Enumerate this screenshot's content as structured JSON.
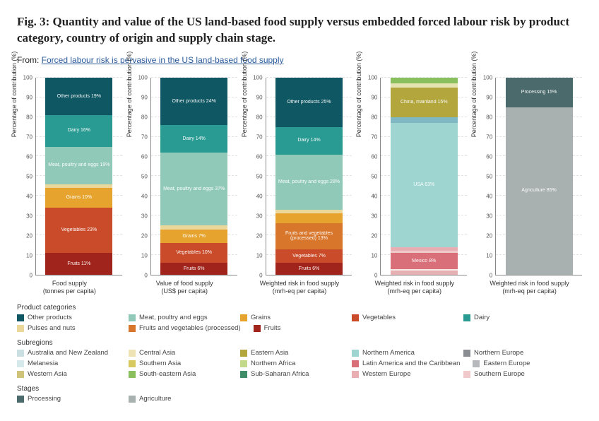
{
  "title": "Fig. 3: Quantity and value of the US land-based food supply versus embedded forced labour risk by product category, country of origin and supply chain stage.",
  "from_prefix": "From: ",
  "from_link": "Forced labour risk is pervasive in the US land-based food supply",
  "y_label": "Percentage of contribution (%)",
  "y_ticks": [
    0,
    10,
    20,
    30,
    40,
    50,
    60,
    70,
    80,
    90,
    100
  ],
  "charts": [
    {
      "caption_l1": "Food supply",
      "caption_l2": "(tonnes per capita)",
      "segments": [
        {
          "label": "Fruits",
          "pct": 11,
          "color": "#a0241b"
        },
        {
          "label": "Vegetables",
          "pct": 23,
          "color": "#c94b2a"
        },
        {
          "label": "Fruits and vegetables (processed)",
          "pct": 0,
          "color": "#d8772c",
          "hide": true
        },
        {
          "label": "Grains",
          "pct": 10,
          "color": "#e6a42e"
        },
        {
          "label": "Pulses and nuts",
          "pct": 2,
          "color": "#ecd79a",
          "hide": true
        },
        {
          "label": "Meat, poultry and eggs",
          "pct": 19,
          "color": "#91c9b9"
        },
        {
          "label": "Dairy",
          "pct": 16,
          "color": "#2a9b93"
        },
        {
          "label": "Other products",
          "pct": 19,
          "color": "#0e5763"
        }
      ]
    },
    {
      "caption_l1": "Value of food supply",
      "caption_l2": "(US$ per capita)",
      "segments": [
        {
          "label": "Fruits",
          "pct": 6,
          "color": "#a0241b"
        },
        {
          "label": "Vegetables",
          "pct": 10,
          "color": "#c94b2a"
        },
        {
          "label": "Fruits and vegetables (processed)",
          "pct": 0,
          "color": "#d8772c",
          "hide": true
        },
        {
          "label": "Grains",
          "pct": 7,
          "color": "#e6a42e"
        },
        {
          "label": "Pulses and nuts",
          "pct": 2,
          "color": "#ecd79a",
          "hide": true
        },
        {
          "label": "Meat, poultry and eggs",
          "pct": 37,
          "color": "#91c9b9"
        },
        {
          "label": "Dairy",
          "pct": 14,
          "color": "#2a9b93"
        },
        {
          "label": "Other products",
          "pct": 24,
          "color": "#0e5763"
        }
      ]
    },
    {
      "caption_l1": "Weighted risk in food supply",
      "caption_l2": "(mrh-eq per capita)",
      "segments": [
        {
          "label": "Fruits",
          "pct": 6,
          "color": "#a0241b"
        },
        {
          "label": "Vegetables",
          "pct": 7,
          "color": "#c94b2a"
        },
        {
          "label": "Fruits and vegetables (processed)",
          "pct": 13,
          "color": "#d8772c"
        },
        {
          "label": "Grains",
          "pct": 5,
          "color": "#e6a42e"
        },
        {
          "label": "Pulses and nuts",
          "pct": 2,
          "color": "#ecd79a",
          "hide": true
        },
        {
          "label": "Meat, poultry and eggs",
          "pct": 28,
          "color": "#91c9b9"
        },
        {
          "label": "Dairy",
          "pct": 14,
          "color": "#2a9b93"
        },
        {
          "label": "Other products",
          "pct": 25,
          "color": "#0e5763"
        }
      ]
    },
    {
      "caption_l1": "Weighted risk in food supply",
      "caption_l2": "(mrh-eq per capita)",
      "segments": [
        {
          "label": "",
          "pct": 2,
          "color": "#e7b1b4",
          "hide": true
        },
        {
          "label": "",
          "pct": 1,
          "color": "#f8e9e9",
          "hide": true
        },
        {
          "label": "Mexico",
          "pct": 8,
          "color": "#d96f78"
        },
        {
          "label": "",
          "pct": 1,
          "color": "#f2c9ca",
          "hide": true
        },
        {
          "label": "",
          "pct": 2,
          "color": "#e9aeb2",
          "hide": true
        },
        {
          "label": "USA",
          "pct": 63,
          "color": "#9ed5d0"
        },
        {
          "label": "",
          "pct": 3,
          "color": "#7fb7c3",
          "hide": true
        },
        {
          "label": "China, mainland",
          "pct": 15,
          "color": "#b2a63c"
        },
        {
          "label": "",
          "pct": 2,
          "color": "#e6e3b2",
          "hide": true
        },
        {
          "label": "",
          "pct": 3,
          "color": "#8abf5d",
          "hide": true
        }
      ]
    },
    {
      "caption_l1": "Weighted risk in food supply",
      "caption_l2": "(mrh-eq per capita)",
      "segments": [
        {
          "label": "Agriculture",
          "pct": 85,
          "color": "#a9b0b0"
        },
        {
          "label": "Processing",
          "pct": 15,
          "color": "#4b6a6c"
        }
      ]
    }
  ],
  "legends": {
    "product": {
      "heading": "Product categories",
      "items": [
        {
          "label": "Other products",
          "color": "#0e5763"
        },
        {
          "label": "Meat, poultry and eggs",
          "color": "#91c9b9"
        },
        {
          "label": "Grains",
          "color": "#e6a42e"
        },
        {
          "label": "Vegetables",
          "color": "#c94b2a"
        },
        {
          "label": "Dairy",
          "color": "#2a9b93"
        },
        {
          "label": "Pulses and nuts",
          "color": "#ecd79a"
        },
        {
          "label": "Fruits and vegetables (processed)",
          "color": "#d8772c"
        },
        {
          "label": "Fruits",
          "color": "#a0241b"
        }
      ]
    },
    "subregions": {
      "heading": "Subregions",
      "items": [
        {
          "label": "Australia and New Zealand",
          "color": "#c9dfe2"
        },
        {
          "label": "Central Asia",
          "color": "#ede3b4"
        },
        {
          "label": "Eastern Asia",
          "color": "#b2a63c"
        },
        {
          "label": "Northern America",
          "color": "#9ed5d0"
        },
        {
          "label": "Northern Europe",
          "color": "#8a8d92"
        },
        {
          "label": "Melanesia",
          "color": "#d6e9ea"
        },
        {
          "label": "Southern Asia",
          "color": "#d7c95f"
        },
        {
          "label": "Northern Africa",
          "color": "#c3d98a"
        },
        {
          "label": "Latin America and the Caribbean",
          "color": "#d96f78"
        },
        {
          "label": "Eastern Europe",
          "color": "#b6b8bb"
        },
        {
          "label": "Western Asia",
          "color": "#cfc37a"
        },
        {
          "label": "South-eastern Asia",
          "color": "#8abf5d"
        },
        {
          "label": "Sub-Saharan Africa",
          "color": "#3f8d68"
        },
        {
          "label": "Western Europe",
          "color": "#e9aeb2"
        },
        {
          "label": "Southern Europe",
          "color": "#f2c9ca"
        }
      ]
    },
    "stages": {
      "heading": "Stages",
      "items": [
        {
          "label": "Processing",
          "color": "#4b6a6c"
        },
        {
          "label": "Agriculture",
          "color": "#a9b0b0"
        }
      ]
    }
  }
}
